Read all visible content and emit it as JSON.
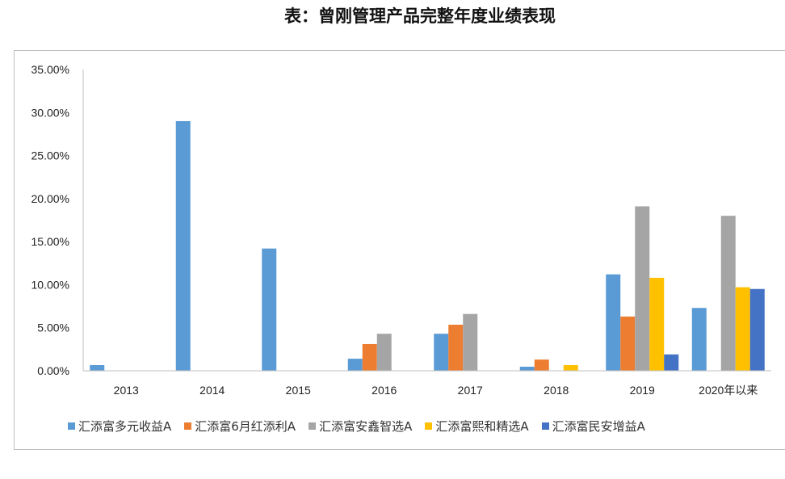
{
  "title": "表：曾刚管理产品完整年度业绩表现",
  "chart_data": {
    "type": "bar",
    "title": "表：曾刚管理产品完整年度业绩表现",
    "categories": [
      "2013",
      "2014",
      "2015",
      "2016",
      "2017",
      "2018",
      "2019",
      "2020年以来"
    ],
    "ylim": [
      0,
      35
    ],
    "yticks": [
      "0.00%",
      "5.00%",
      "10.00%",
      "15.00%",
      "20.00%",
      "25.00%",
      "30.00%",
      "35.00%"
    ],
    "grid": false,
    "legend": "bottom",
    "series": [
      {
        "name": "汇添富多元收益A",
        "color": "#5b9bd5",
        "values": [
          0.66,
          29.0,
          14.2,
          1.4,
          4.3,
          0.47,
          11.2,
          7.3
        ]
      },
      {
        "name": "汇添富6月红添利A",
        "color": "#ed7d31",
        "values": [
          null,
          null,
          null,
          3.1,
          5.35,
          1.3,
          6.3,
          null
        ]
      },
      {
        "name": "汇添富安鑫智选A",
        "color": "#a5a5a5",
        "values": [
          null,
          null,
          null,
          4.3,
          6.6,
          null,
          19.1,
          18.0
        ]
      },
      {
        "name": "汇添富熙和精选A",
        "color": "#ffc000",
        "values": [
          null,
          null,
          null,
          null,
          null,
          0.66,
          10.8,
          9.7
        ]
      },
      {
        "name": "汇添富民安增益A",
        "color": "#4472c4",
        "values": [
          null,
          null,
          null,
          null,
          null,
          null,
          1.9,
          9.5
        ]
      }
    ]
  }
}
